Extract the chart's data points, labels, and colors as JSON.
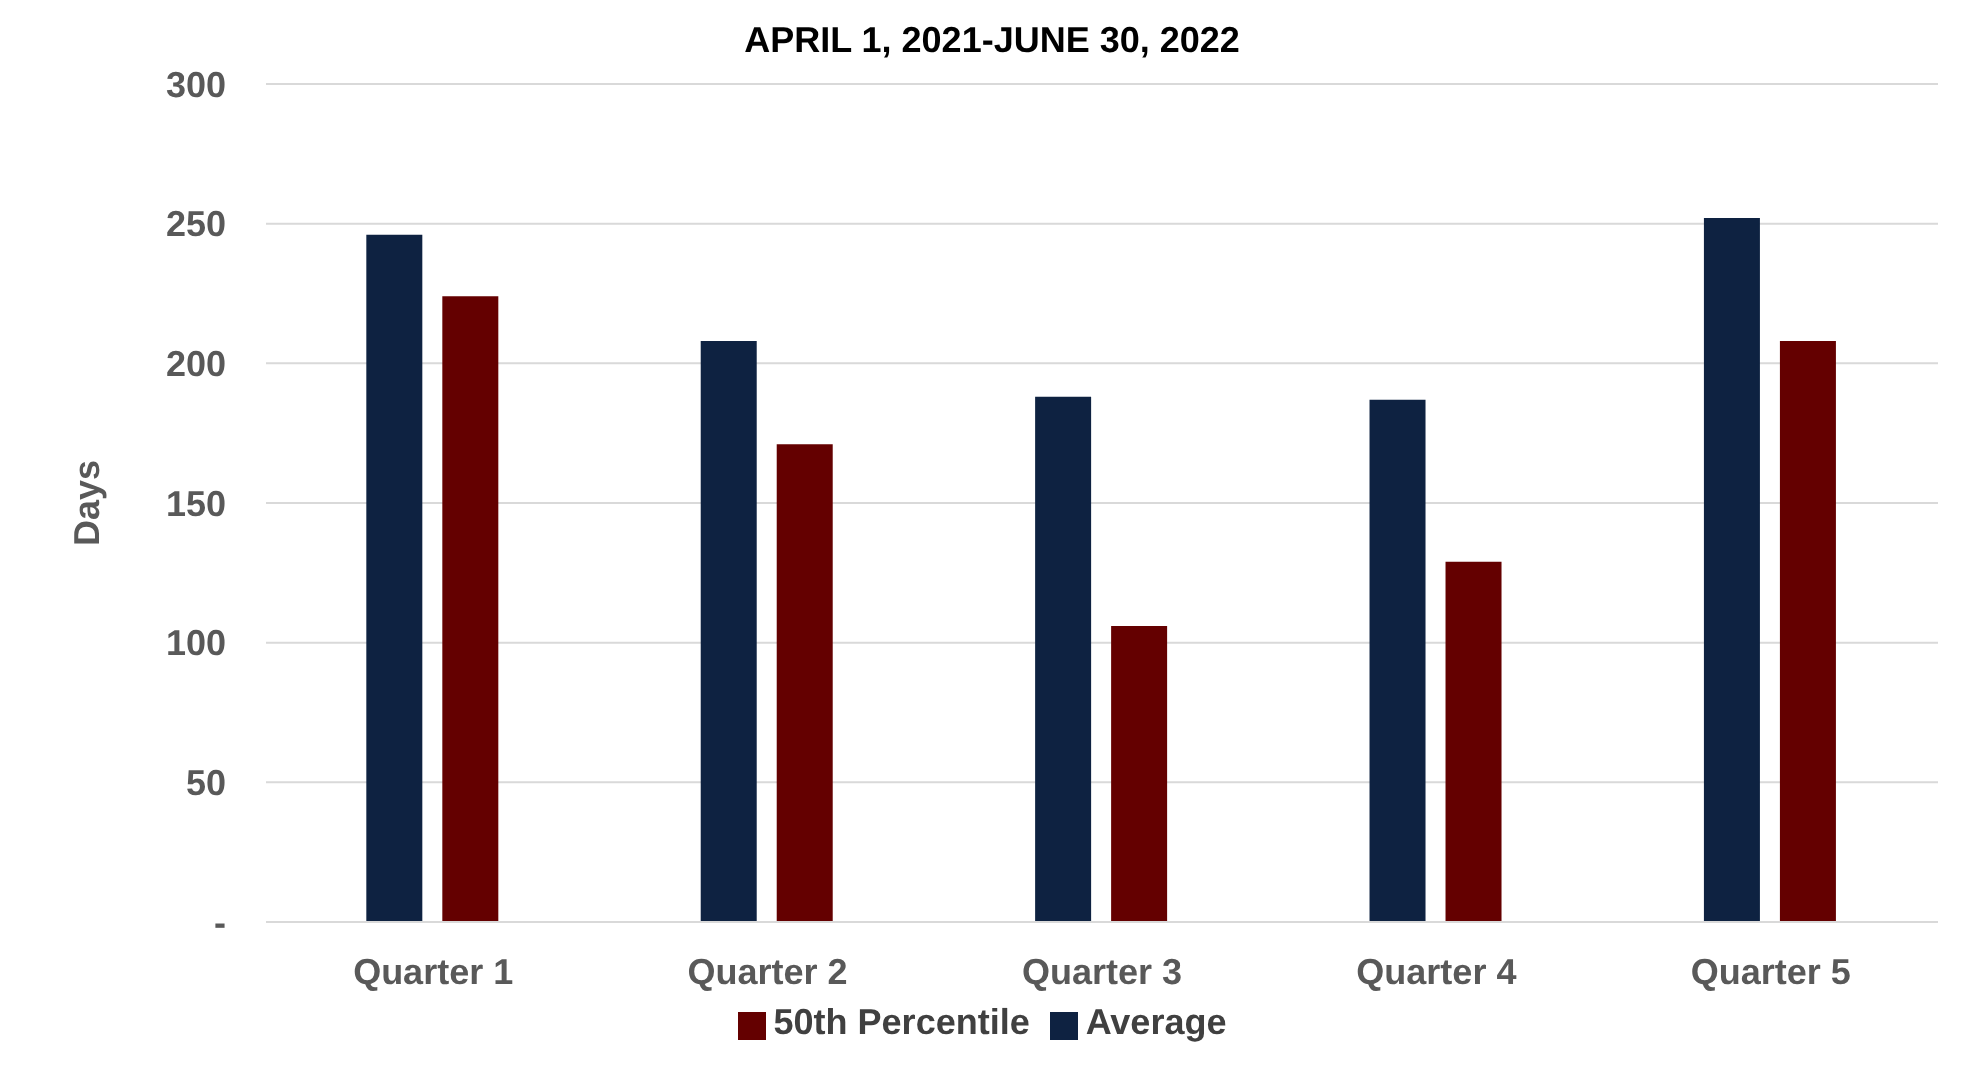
{
  "chart_data": {
    "type": "bar",
    "title": "APRIL 1, 2021-JUNE 30, 2022",
    "ylabel": "Days",
    "categories": [
      "Quarter 1",
      "Quarter 2",
      "Quarter 3",
      "Quarter 4",
      "Quarter 5"
    ],
    "series": [
      {
        "name": "Average",
        "color": "#0e2241",
        "values": [
          246,
          208,
          188,
          187,
          252
        ]
      },
      {
        "name": "50th Percentile",
        "color": "#640000",
        "values": [
          224,
          171,
          106,
          129,
          208
        ]
      }
    ],
    "ylim": [
      0,
      300
    ],
    "yticks": [
      {
        "value": 0,
        "label": "-"
      },
      50,
      100,
      150,
      200,
      250,
      300
    ],
    "grid": "y",
    "legend": "bottom"
  }
}
